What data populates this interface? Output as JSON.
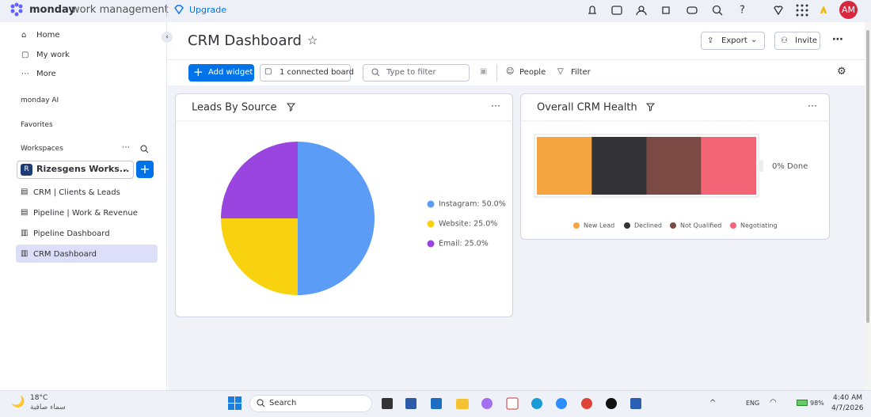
{
  "topbar": {
    "brand": "monday",
    "product": "work management",
    "upgrade": "Upgrade",
    "avatar": "AM"
  },
  "sidebar": {
    "nav": [
      "Home",
      "My work",
      "More"
    ],
    "monday_ai": "monday AI",
    "favorites": "Favorites",
    "workspaces": "Workspaces",
    "workspace_icon": "R",
    "workspace": "Rizesgens Works...",
    "boards": [
      "CRM | Clients & Leads",
      "Pipeline | Work & Revenue",
      "Pipeline Dashboard",
      "CRM Dashboard"
    ]
  },
  "header": {
    "title": "CRM Dashboard",
    "export": "Export",
    "invite": "Invite"
  },
  "toolbar": {
    "add_widget": "Add widget",
    "connected": "1 connected board",
    "filter_placeholder": "Type to filter",
    "people": "People",
    "filter": "Filter"
  },
  "chart_data": [
    {
      "type": "pie",
      "title": "Leads By Source",
      "values": [
        50,
        25,
        25
      ],
      "value_labels": [
        "Instagram: 50.0%",
        "Website: 25.0%",
        "Email: 25.0%"
      ],
      "colors": [
        "#5b9cf6",
        "#f8d20f",
        "#9b45e0"
      ]
    },
    {
      "type": "stacked-bar",
      "title": "Overall CRM Health",
      "xlim": [
        0,
        100
      ],
      "series": [
        {
          "name": "New Lead",
          "color": "#f4a540",
          "values": [
            25
          ]
        },
        {
          "name": "Declined",
          "color": "#333237",
          "values": [
            25
          ]
        },
        {
          "name": "Not Qualified",
          "color": "#7b4a44",
          "values": [
            25
          ]
        },
        {
          "name": "Negotiating",
          "color": "#f36477",
          "values": [
            25
          ]
        }
      ],
      "annotation": "0% Done"
    }
  ],
  "taskbar": {
    "temperature": "18°C",
    "weather": "سماء صافية",
    "search": "Search",
    "language": "ENG",
    "battery": "98%",
    "time": "4:40 AM",
    "date": "4/7/2026"
  }
}
